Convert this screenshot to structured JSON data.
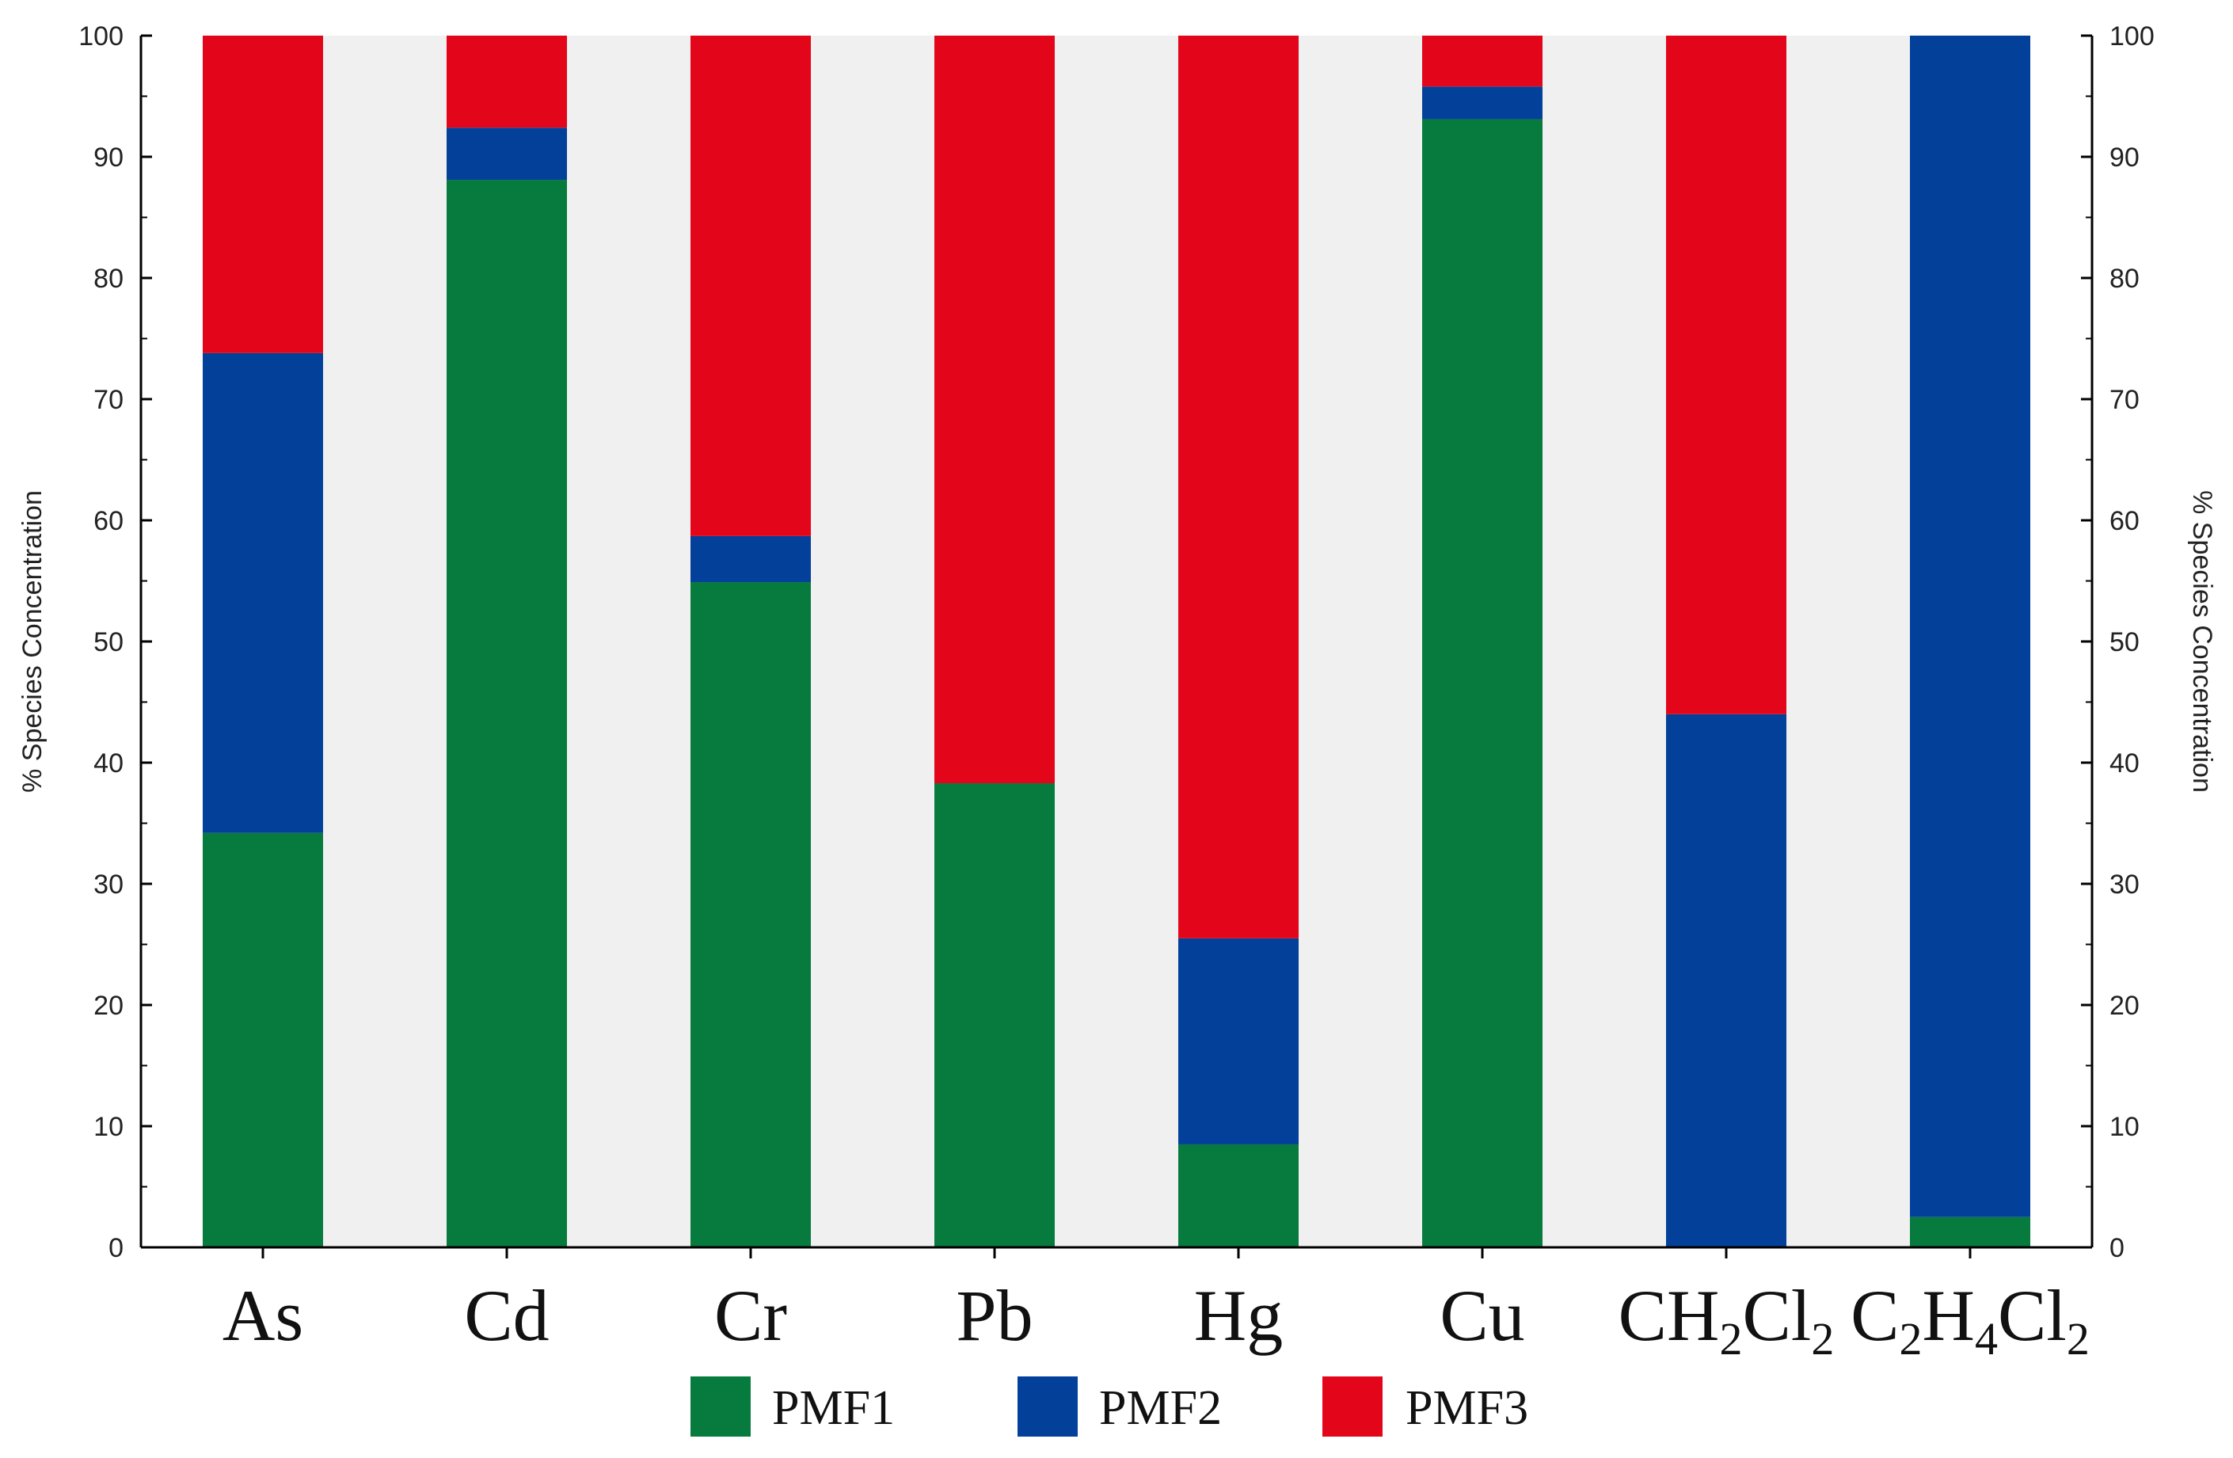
{
  "chart_data": {
    "type": "bar",
    "stacked": true,
    "ylabel": "% Species Concentration",
    "ylabel_right": "% Species Concentration",
    "ylim": [
      0,
      100
    ],
    "yticks": [
      "0",
      "10",
      "20",
      "30",
      "40",
      "50",
      "60",
      "70",
      "80",
      "90",
      "100"
    ],
    "grid": false,
    "legend_position": "bottom",
    "categories": [
      {
        "base": "As",
        "subs": []
      },
      {
        "base": "Cd",
        "subs": []
      },
      {
        "base": "Cr",
        "subs": []
      },
      {
        "base": "Pb",
        "subs": []
      },
      {
        "base": "Hg",
        "subs": []
      },
      {
        "base": "Cu",
        "subs": []
      },
      {
        "base": "CH2Cl2",
        "parts": [
          [
            "CH",
            ""
          ],
          [
            "2",
            "sub"
          ],
          [
            "Cl",
            ""
          ],
          [
            "2",
            "sub"
          ]
        ]
      },
      {
        "base": "C2H4Cl2",
        "parts": [
          [
            "C",
            ""
          ],
          [
            "2",
            "sub"
          ],
          [
            "H",
            ""
          ],
          [
            "4",
            "sub"
          ],
          [
            "Cl",
            ""
          ],
          [
            "2",
            "sub"
          ]
        ]
      }
    ],
    "series": [
      {
        "name": "PMF1",
        "color": "#077a3e",
        "values": [
          34.2,
          88.1,
          54.9,
          38.3,
          8.5,
          93.1,
          0.0,
          2.5
        ]
      },
      {
        "name": "PMF2",
        "color": "#02409a",
        "values": [
          39.6,
          4.3,
          3.8,
          0.0,
          17.0,
          2.7,
          44.0,
          97.5
        ]
      },
      {
        "name": "PMF3",
        "color": "#e3061a",
        "values": [
          26.2,
          7.6,
          41.3,
          61.7,
          74.5,
          4.2,
          56.0,
          0.0
        ]
      }
    ],
    "colors": {
      "background_band": "#f0f0f0",
      "plot_background": "#ffffff"
    }
  }
}
